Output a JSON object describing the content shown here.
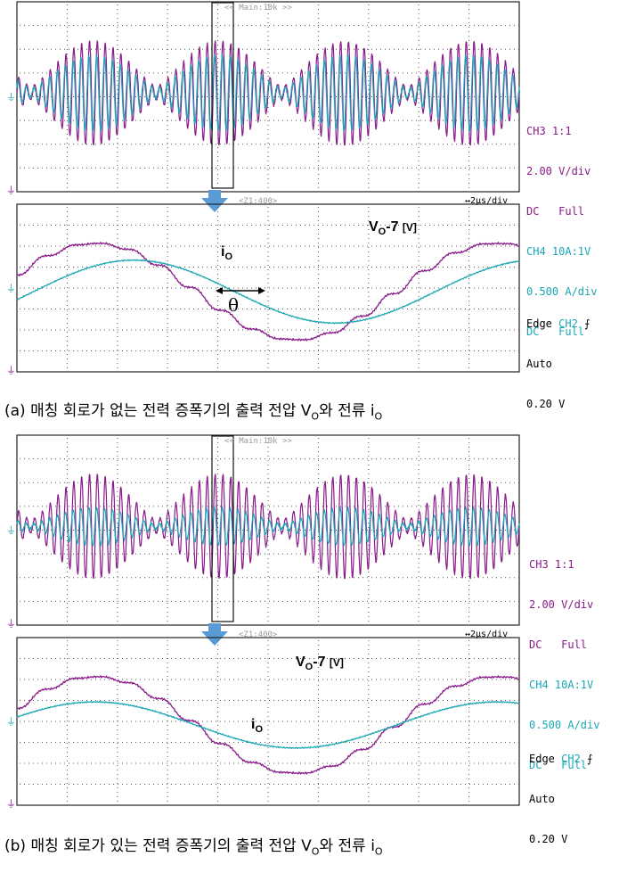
{
  "panels": [
    {
      "id": "a",
      "upper_header": "<< Main:10k >>",
      "lower_header": "<Z1:400>",
      "timebase": "↔2µs/div",
      "ch3": {
        "line1": "CH3 1:1",
        "line2": "2.00 V/div",
        "line3": "DC   Full"
      },
      "ch4": {
        "line1": "CH4 10A:1V",
        "line2": "0.500 A/div",
        "line3": "DC   Full"
      },
      "trigger": {
        "edge": "Edge",
        "ch": "CH2",
        "mode": "Auto",
        "level": "0.20 V"
      },
      "vo_label": {
        "main": "V",
        "sub": "O",
        "rest": "-7 ",
        "unit": "[V]"
      },
      "io_label": {
        "main": "i",
        "sub": "O"
      },
      "theta": "θ",
      "caption": {
        "text": "(a) 매칭 회로가 없는 전력 증폭기의 출력 전압 V",
        "sub1": "O",
        "mid": "와 전류 i",
        "sub2": "O"
      }
    },
    {
      "id": "b",
      "upper_header": "<< Main:10k >>",
      "lower_header": "<Z1:400>",
      "timebase": "↔2µs/div",
      "ch3": {
        "line1": "CH3 1:1",
        "line2": "2.00 V/div",
        "line3": "DC   Full"
      },
      "ch4": {
        "line1": "CH4 10A:1V",
        "line2": "0.500 A/div",
        "line3": "DC   Full"
      },
      "trigger": {
        "edge": "Edge",
        "ch": "CH2",
        "mode": "Auto",
        "level": "0.20 V"
      },
      "vo_label": {
        "main": "V",
        "sub": "O",
        "rest": "-7 ",
        "unit": "[V]"
      },
      "io_label": {
        "main": "i",
        "sub": "O"
      },
      "caption": {
        "text": "(b) 매칭 회로가 있는 전력 증폭기의 출력 전압 V",
        "sub1": "O",
        "mid": "와 전류 i",
        "sub2": "O"
      }
    }
  ],
  "colors": {
    "ch3": "#8a1b8a",
    "ch4": "#1aa7b4",
    "grid": "#555555",
    "arrow": "#5b9bd5"
  },
  "chart_data": [
    {
      "panel": "a",
      "view": "main",
      "type": "line",
      "series": [
        {
          "name": "CH3",
          "envelope_cycles": 4,
          "carrier_cycles_per_envelope": 16,
          "amplitude_div": 2.2
        },
        {
          "name": "CH4",
          "envelope_cycles": 4,
          "carrier_cycles_per_envelope": 16,
          "amplitude_div": 1.6
        }
      ]
    },
    {
      "panel": "a",
      "view": "zoom",
      "type": "line",
      "series": [
        {
          "name": "CH3",
          "cycles": 1.25,
          "amplitude_div": 2.3,
          "phase_deg": 0
        },
        {
          "name": "CH4",
          "cycles": 1.25,
          "amplitude_div": 1.5,
          "phase_deg": 35
        }
      ]
    },
    {
      "panel": "b",
      "view": "main",
      "type": "line",
      "series": [
        {
          "name": "CH3",
          "envelope_cycles": 4,
          "carrier_cycles_per_envelope": 16,
          "amplitude_div": 2.2
        },
        {
          "name": "CH4",
          "envelope_cycles": 4,
          "carrier_cycles_per_envelope": 16,
          "amplitude_div": 0.8
        }
      ]
    },
    {
      "panel": "b",
      "view": "zoom",
      "type": "line",
      "series": [
        {
          "name": "CH3",
          "cycles": 1.25,
          "amplitude_div": 2.3,
          "phase_deg": 0
        },
        {
          "name": "CH4",
          "cycles": 1.25,
          "amplitude_div": 1.1,
          "phase_deg": 0
        }
      ]
    }
  ]
}
